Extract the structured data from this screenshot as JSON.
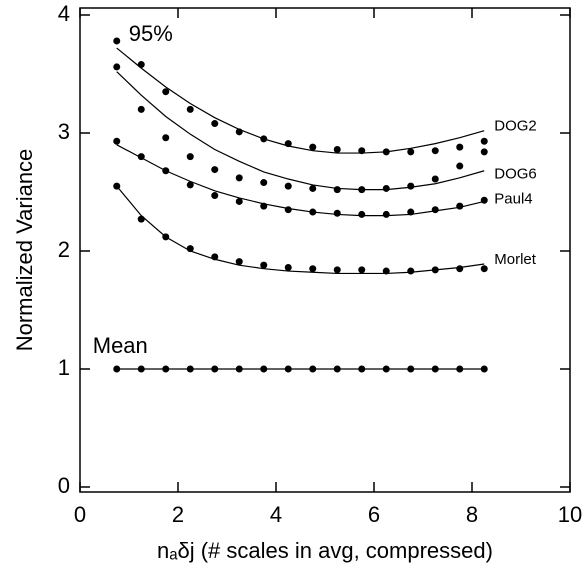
{
  "chart_data": {
    "type": "line",
    "xlabel": "nₐδj (# scales in avg, compressed)",
    "ylabel": "Normalized Variance",
    "annotation": "95%",
    "x": [
      0.75,
      1.25,
      1.75,
      2.25,
      2.75,
      3.25,
      3.75,
      4.25,
      4.75,
      5.25,
      5.75,
      6.25,
      6.75,
      7.25,
      7.75,
      8.25
    ],
    "series": [
      {
        "name": "DOG2",
        "color": "#000000",
        "values": [
          3.78,
          3.58,
          3.35,
          3.2,
          3.08,
          3.01,
          2.95,
          2.91,
          2.88,
          2.86,
          2.85,
          2.84,
          2.84,
          2.85,
          2.88,
          2.93
        ],
        "fit": [
          3.72,
          3.55,
          3.39,
          3.25,
          3.13,
          3.03,
          2.95,
          2.89,
          2.85,
          2.83,
          2.83,
          2.84,
          2.87,
          2.91,
          2.96,
          3.02
        ]
      },
      {
        "name": "DOG6",
        "color": "#000000",
        "values": [
          3.56,
          3.2,
          2.96,
          2.8,
          2.69,
          2.62,
          2.58,
          2.55,
          2.53,
          2.52,
          2.52,
          2.53,
          2.55,
          2.61,
          2.72,
          2.84
        ],
        "fit": [
          3.52,
          3.32,
          3.14,
          2.99,
          2.86,
          2.76,
          2.67,
          2.61,
          2.56,
          2.53,
          2.52,
          2.52,
          2.54,
          2.57,
          2.62,
          2.68
        ]
      },
      {
        "name": "Paul4",
        "color": "#000000",
        "values": [
          2.93,
          2.8,
          2.68,
          2.56,
          2.47,
          2.42,
          2.38,
          2.35,
          2.33,
          2.32,
          2.31,
          2.31,
          2.33,
          2.35,
          2.38,
          2.43
        ],
        "fit": [
          2.9,
          2.79,
          2.68,
          2.59,
          2.51,
          2.45,
          2.4,
          2.36,
          2.33,
          2.31,
          2.3,
          2.3,
          2.31,
          2.34,
          2.37,
          2.42
        ]
      },
      {
        "name": "Morlet",
        "color": "#000000",
        "values": [
          2.55,
          2.27,
          2.12,
          2.02,
          1.95,
          1.91,
          1.88,
          1.86,
          1.85,
          1.84,
          1.84,
          1.83,
          1.83,
          1.84,
          1.85,
          1.85
        ],
        "fit": [
          2.55,
          2.3,
          2.12,
          2.0,
          1.93,
          1.88,
          1.85,
          1.83,
          1.82,
          1.81,
          1.81,
          1.81,
          1.82,
          1.84,
          1.86,
          1.89
        ]
      },
      {
        "name": "Mean",
        "color": "#000000",
        "values": [
          1,
          1,
          1,
          1,
          1,
          1,
          1,
          1,
          1,
          1,
          1,
          1,
          1,
          1,
          1,
          1
        ],
        "fit": [
          1,
          1,
          1,
          1,
          1,
          1,
          1,
          1,
          1,
          1,
          1,
          1,
          1,
          1,
          1,
          1
        ]
      }
    ],
    "xlim": [
      0,
      10
    ],
    "xticks": [
      0,
      2,
      4,
      6,
      8,
      10
    ],
    "ylim": [
      0,
      4
    ],
    "yticks": [
      0,
      1,
      2,
      3,
      4
    ]
  }
}
